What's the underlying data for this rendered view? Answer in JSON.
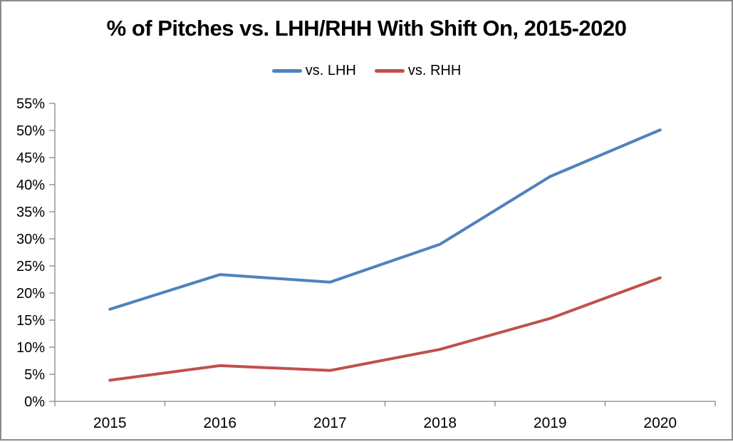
{
  "chart_data": {
    "type": "line",
    "title": "% of Pitches vs. LHH/RHH With Shift On, 2015-2020",
    "categories": [
      "2015",
      "2016",
      "2017",
      "2018",
      "2019",
      "2020"
    ],
    "series": [
      {
        "name": "vs. LHH",
        "color": "#4F81BD",
        "values": [
          17.0,
          23.4,
          22.0,
          29.0,
          41.5,
          50.1
        ]
      },
      {
        "name": "vs. RHH",
        "color": "#C0504D",
        "values": [
          3.9,
          6.6,
          5.7,
          9.6,
          15.3,
          22.8
        ]
      }
    ],
    "xlabel": "",
    "ylabel": "",
    "ylim": [
      0,
      55
    ],
    "ytick_step": 5,
    "ytick_labels": [
      "0%",
      "5%",
      "10%",
      "15%",
      "20%",
      "25%",
      "30%",
      "35%",
      "40%",
      "45%",
      "50%",
      "55%"
    ],
    "legend_position": "top",
    "grid": false,
    "axis_color": "#878787",
    "line_width": 4
  }
}
